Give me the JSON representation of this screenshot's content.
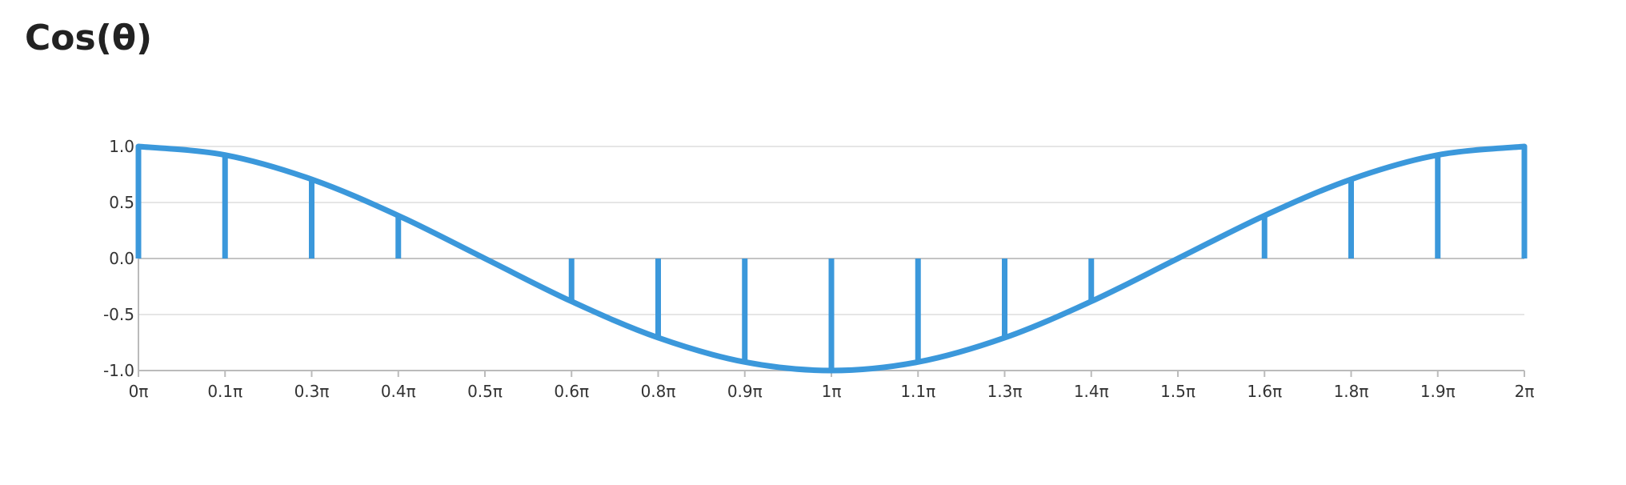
{
  "chart_data": {
    "type": "line",
    "title": "Cos(θ)",
    "xlabel": "",
    "ylabel": "",
    "x_ticks": [
      "0π",
      "0.1π",
      "0.3π",
      "0.4π",
      "0.5π",
      "0.6π",
      "0.8π",
      "0.9π",
      "1π",
      "1.1π",
      "1.3π",
      "1.4π",
      "1.5π",
      "1.6π",
      "1.8π",
      "1.9π",
      "2π"
    ],
    "y_ticks": [
      "1.0",
      "0.5",
      "0.0",
      "-0.5",
      "-1.0"
    ],
    "xlim": [
      0,
      2
    ],
    "ylim": [
      -1,
      1
    ],
    "x_unit": "π",
    "grid": true,
    "color": "#3b98db",
    "series": [
      {
        "name": "",
        "x": [
          0,
          0.125,
          0.25,
          0.375,
          0.5,
          0.625,
          0.75,
          0.875,
          1,
          1.125,
          1.25,
          1.375,
          1.5,
          1.625,
          1.75,
          1.875,
          2
        ],
        "values": [
          1.0,
          0.924,
          0.707,
          0.383,
          0.0,
          -0.383,
          -0.707,
          -0.924,
          -1.0,
          -0.924,
          -0.707,
          -0.383,
          0.0,
          0.383,
          0.707,
          0.924,
          1.0
        ]
      }
    ]
  }
}
